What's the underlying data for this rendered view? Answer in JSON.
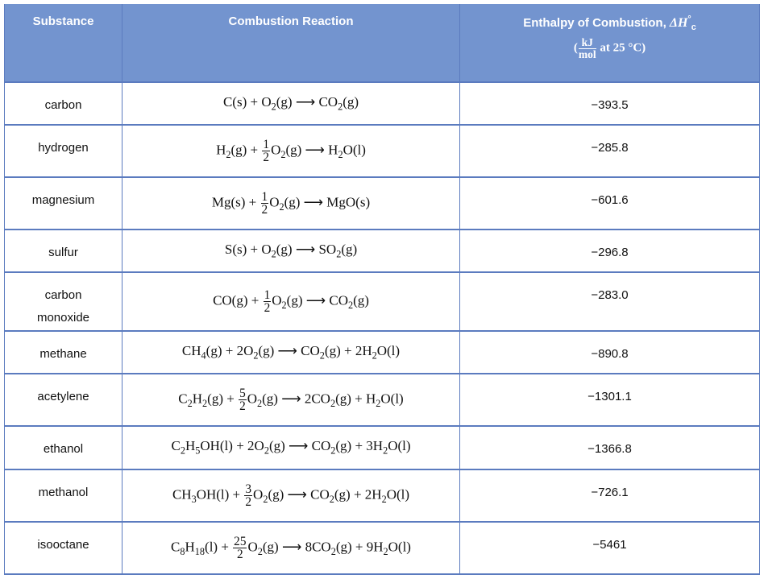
{
  "table": {
    "header": [
      "Substance",
      "Combustion Reaction",
      [
        [
          "Enthalpy of Combustion, ",
          "ΔH",
          {
            "sup": "°"
          },
          {
            "sub": "c"
          }
        ],
        [
          "(",
          {
            "num": "kJ",
            "den": "mol"
          },
          " at 25 °C)"
        ]
      ]
    ],
    "rows": [
      {
        "substance": "carbon",
        "reaction": [
          "C(s) + O",
          {
            "sub": "2"
          },
          "(g) ⟶ CO",
          {
            "sub": "2"
          },
          "(g)"
        ],
        "enthalpy": "−393.5"
      },
      {
        "substance": "hydrogen",
        "reaction": [
          "H",
          {
            "sub": "2"
          },
          "(g) + ",
          {
            "num": "1",
            "den": "2"
          },
          "O",
          {
            "sub": "2"
          },
          "(g) ⟶ H",
          {
            "sub": "2"
          },
          "O(l)"
        ],
        "enthalpy": "−285.8"
      },
      {
        "substance": "magnesium",
        "reaction": [
          "Mg(s) + ",
          {
            "num": "1",
            "den": "2"
          },
          "O",
          {
            "sub": "2"
          },
          "(g) ⟶ MgO(s)"
        ],
        "enthalpy": "−601.6"
      },
      {
        "substance": "sulfur",
        "reaction": [
          "S(s) + O",
          {
            "sub": "2"
          },
          "(g) ⟶ SO",
          {
            "sub": "2"
          },
          "(g)"
        ],
        "enthalpy": "−296.8"
      },
      {
        "substance": "carbon monoxide",
        "reaction": [
          "CO(g) + ",
          {
            "num": "1",
            "den": "2"
          },
          "O",
          {
            "sub": "2"
          },
          "(g) ⟶ CO",
          {
            "sub": "2"
          },
          "(g)"
        ],
        "enthalpy": "−283.0"
      },
      {
        "substance": "methane",
        "reaction": [
          "CH",
          {
            "sub": "4"
          },
          "(g) + 2O",
          {
            "sub": "2"
          },
          "(g) ⟶ CO",
          {
            "sub": "2"
          },
          "(g) + 2H",
          {
            "sub": "2"
          },
          "O(l)"
        ],
        "enthalpy": "−890.8"
      },
      {
        "substance": "acetylene",
        "reaction": [
          "C",
          {
            "sub": "2"
          },
          "H",
          {
            "sub": "2"
          },
          "(g) + ",
          {
            "num": "5",
            "den": "2"
          },
          "O",
          {
            "sub": "2"
          },
          "(g) ⟶ 2CO",
          {
            "sub": "2"
          },
          "(g) + H",
          {
            "sub": "2"
          },
          "O(l)"
        ],
        "enthalpy": "−1301.1"
      },
      {
        "substance": "ethanol",
        "reaction": [
          "C",
          {
            "sub": "2"
          },
          "H",
          {
            "sub": "5"
          },
          "OH(l) + 2O",
          {
            "sub": "2"
          },
          "(g) ⟶ CO",
          {
            "sub": "2"
          },
          "(g) + 3H",
          {
            "sub": "2"
          },
          "O(l)"
        ],
        "enthalpy": "−1366.8"
      },
      {
        "substance": "methanol",
        "reaction": [
          "CH",
          {
            "sub": "3"
          },
          "OH(l) + ",
          {
            "num": "3",
            "den": "2"
          },
          "O",
          {
            "sub": "2"
          },
          "(g) ⟶ CO",
          {
            "sub": "2"
          },
          "(g) + 2H",
          {
            "sub": "2"
          },
          "O(l)"
        ],
        "enthalpy": "−726.1"
      },
      {
        "substance": "isooctane",
        "reaction": [
          "C",
          {
            "sub": "8"
          },
          "H",
          {
            "sub": "18"
          },
          "(l) + ",
          {
            "num": "25",
            "den": "2"
          },
          "O",
          {
            "sub": "2"
          },
          "(g) ⟶ 8CO",
          {
            "sub": "2"
          },
          "(g) + 9H",
          {
            "sub": "2"
          },
          "O(l)"
        ],
        "enthalpy": "−5461"
      }
    ]
  }
}
